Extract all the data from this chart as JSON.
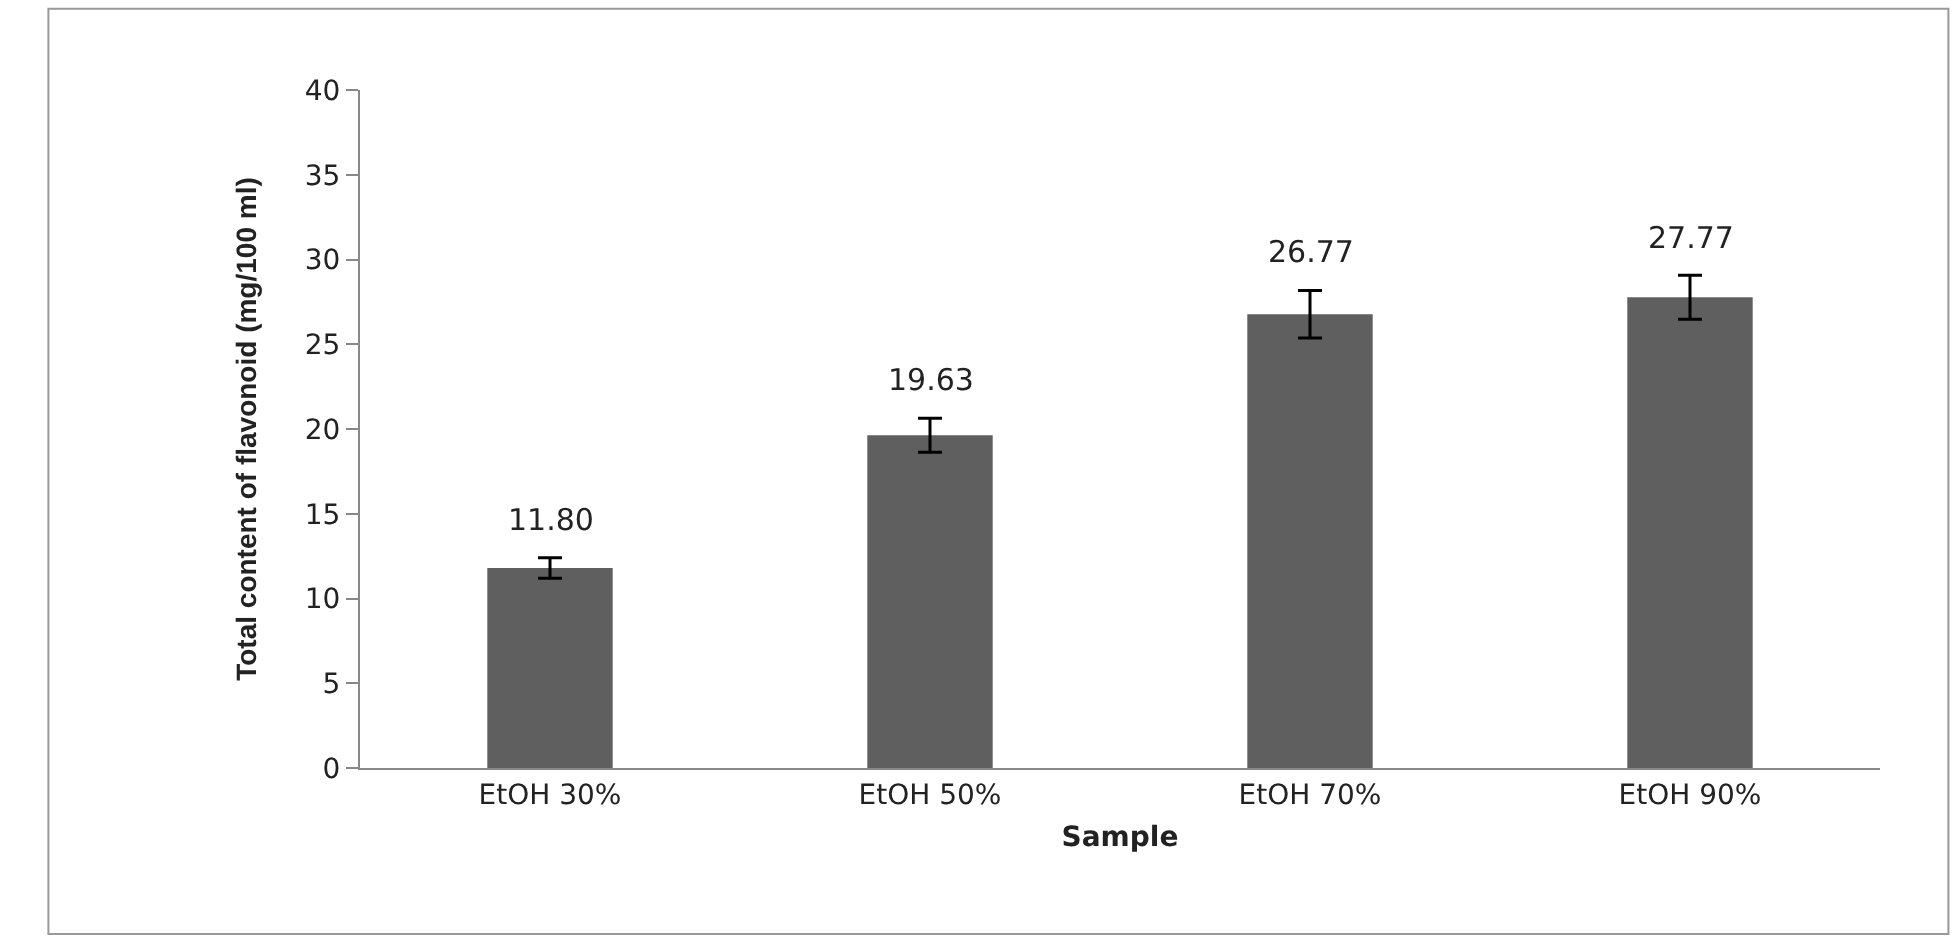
{
  "chart_data": {
    "type": "bar",
    "xlabel": "Sample",
    "ylabel": "Total content of flavonoid (mg/100 ml)",
    "categories": [
      "EtOH 30%",
      "EtOH 50%",
      "EtOH 70%",
      "EtOH 90%"
    ],
    "values": [
      11.8,
      19.63,
      26.77,
      27.77
    ],
    "errors": [
      0.6,
      1.0,
      1.4,
      1.3
    ],
    "color": "#5f5f5f",
    "ylim": [
      0,
      40
    ],
    "yticks": [
      0,
      5,
      10,
      15,
      20,
      25,
      30,
      35,
      40
    ],
    "value_labels": [
      "11.80",
      "19.63",
      "26.77",
      "27.77"
    ]
  }
}
